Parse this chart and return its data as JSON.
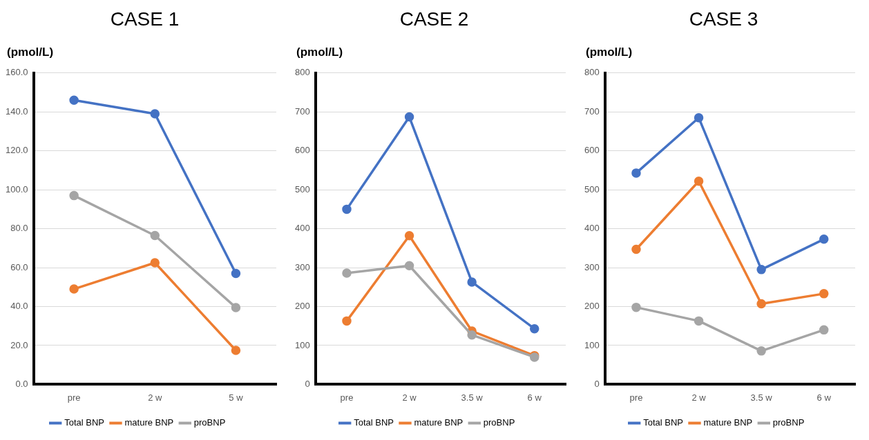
{
  "chart_data": [
    {
      "type": "line",
      "title": "CASE 1",
      "ylabel": "(pmol/L)",
      "categories": [
        "pre",
        "2 w",
        "5 w"
      ],
      "series": [
        {
          "name": "Total BNP",
          "color": "#4472c4",
          "values": [
            146,
            139,
            57
          ]
        },
        {
          "name": "mature BNP",
          "color": "#ed7d31",
          "values": [
            49,
            62.5,
            17.5
          ]
        },
        {
          "name": "proBNP",
          "color": "#a5a5a5",
          "values": [
            97,
            76.5,
            39.5
          ]
        }
      ],
      "ylim": [
        0,
        160
      ],
      "yticks": [
        {
          "value": 0,
          "label": "0.0"
        },
        {
          "value": 20,
          "label": "20.0"
        },
        {
          "value": 40,
          "label": "40.0"
        },
        {
          "value": 60,
          "label": "60.0"
        },
        {
          "value": 80,
          "label": "80.0"
        },
        {
          "value": 100,
          "label": "100.0"
        },
        {
          "value": 120,
          "label": "120.0"
        },
        {
          "value": 140,
          "label": "140.0"
        },
        {
          "value": 160,
          "label": "160.0"
        }
      ],
      "grid": "y",
      "legend": "bottom",
      "marker": "circle",
      "line_style": "solid"
    },
    {
      "type": "line",
      "title": "CASE 2",
      "ylabel": "(pmol/L)",
      "categories": [
        "pre",
        "2 w",
        "3.5 w",
        "6 w"
      ],
      "series": [
        {
          "name": "Total BNP",
          "color": "#4472c4",
          "values": [
            450,
            687,
            263,
            143
          ]
        },
        {
          "name": "mature BNP",
          "color": "#ed7d31",
          "values": [
            163,
            382,
            137,
            74
          ]
        },
        {
          "name": "proBNP",
          "color": "#a5a5a5",
          "values": [
            286,
            305,
            127,
            70
          ]
        }
      ],
      "ylim": [
        0,
        800
      ],
      "yticks": [
        0,
        100,
        200,
        300,
        400,
        500,
        600,
        700,
        800
      ],
      "grid": "y",
      "legend": "bottom",
      "marker": "circle",
      "line_style": "solid"
    },
    {
      "type": "line",
      "title": "CASE 3",
      "ylabel": "(pmol/L)",
      "categories": [
        "pre",
        "2 w",
        "3.5 w",
        "6 w"
      ],
      "series": [
        {
          "name": "Total BNP",
          "color": "#4472c4",
          "values": [
            543,
            685,
            295,
            373
          ]
        },
        {
          "name": "mature BNP",
          "color": "#ed7d31",
          "values": [
            347,
            522,
            207,
            233
          ]
        },
        {
          "name": "proBNP",
          "color": "#a5a5a5",
          "values": [
            198,
            163,
            86,
            140
          ]
        }
      ],
      "ylim": [
        0,
        800
      ],
      "yticks": [
        0,
        100,
        200,
        300,
        400,
        500,
        600,
        700,
        800
      ],
      "grid": "y",
      "legend": "bottom",
      "marker": "circle",
      "line_style": "solid"
    }
  ]
}
